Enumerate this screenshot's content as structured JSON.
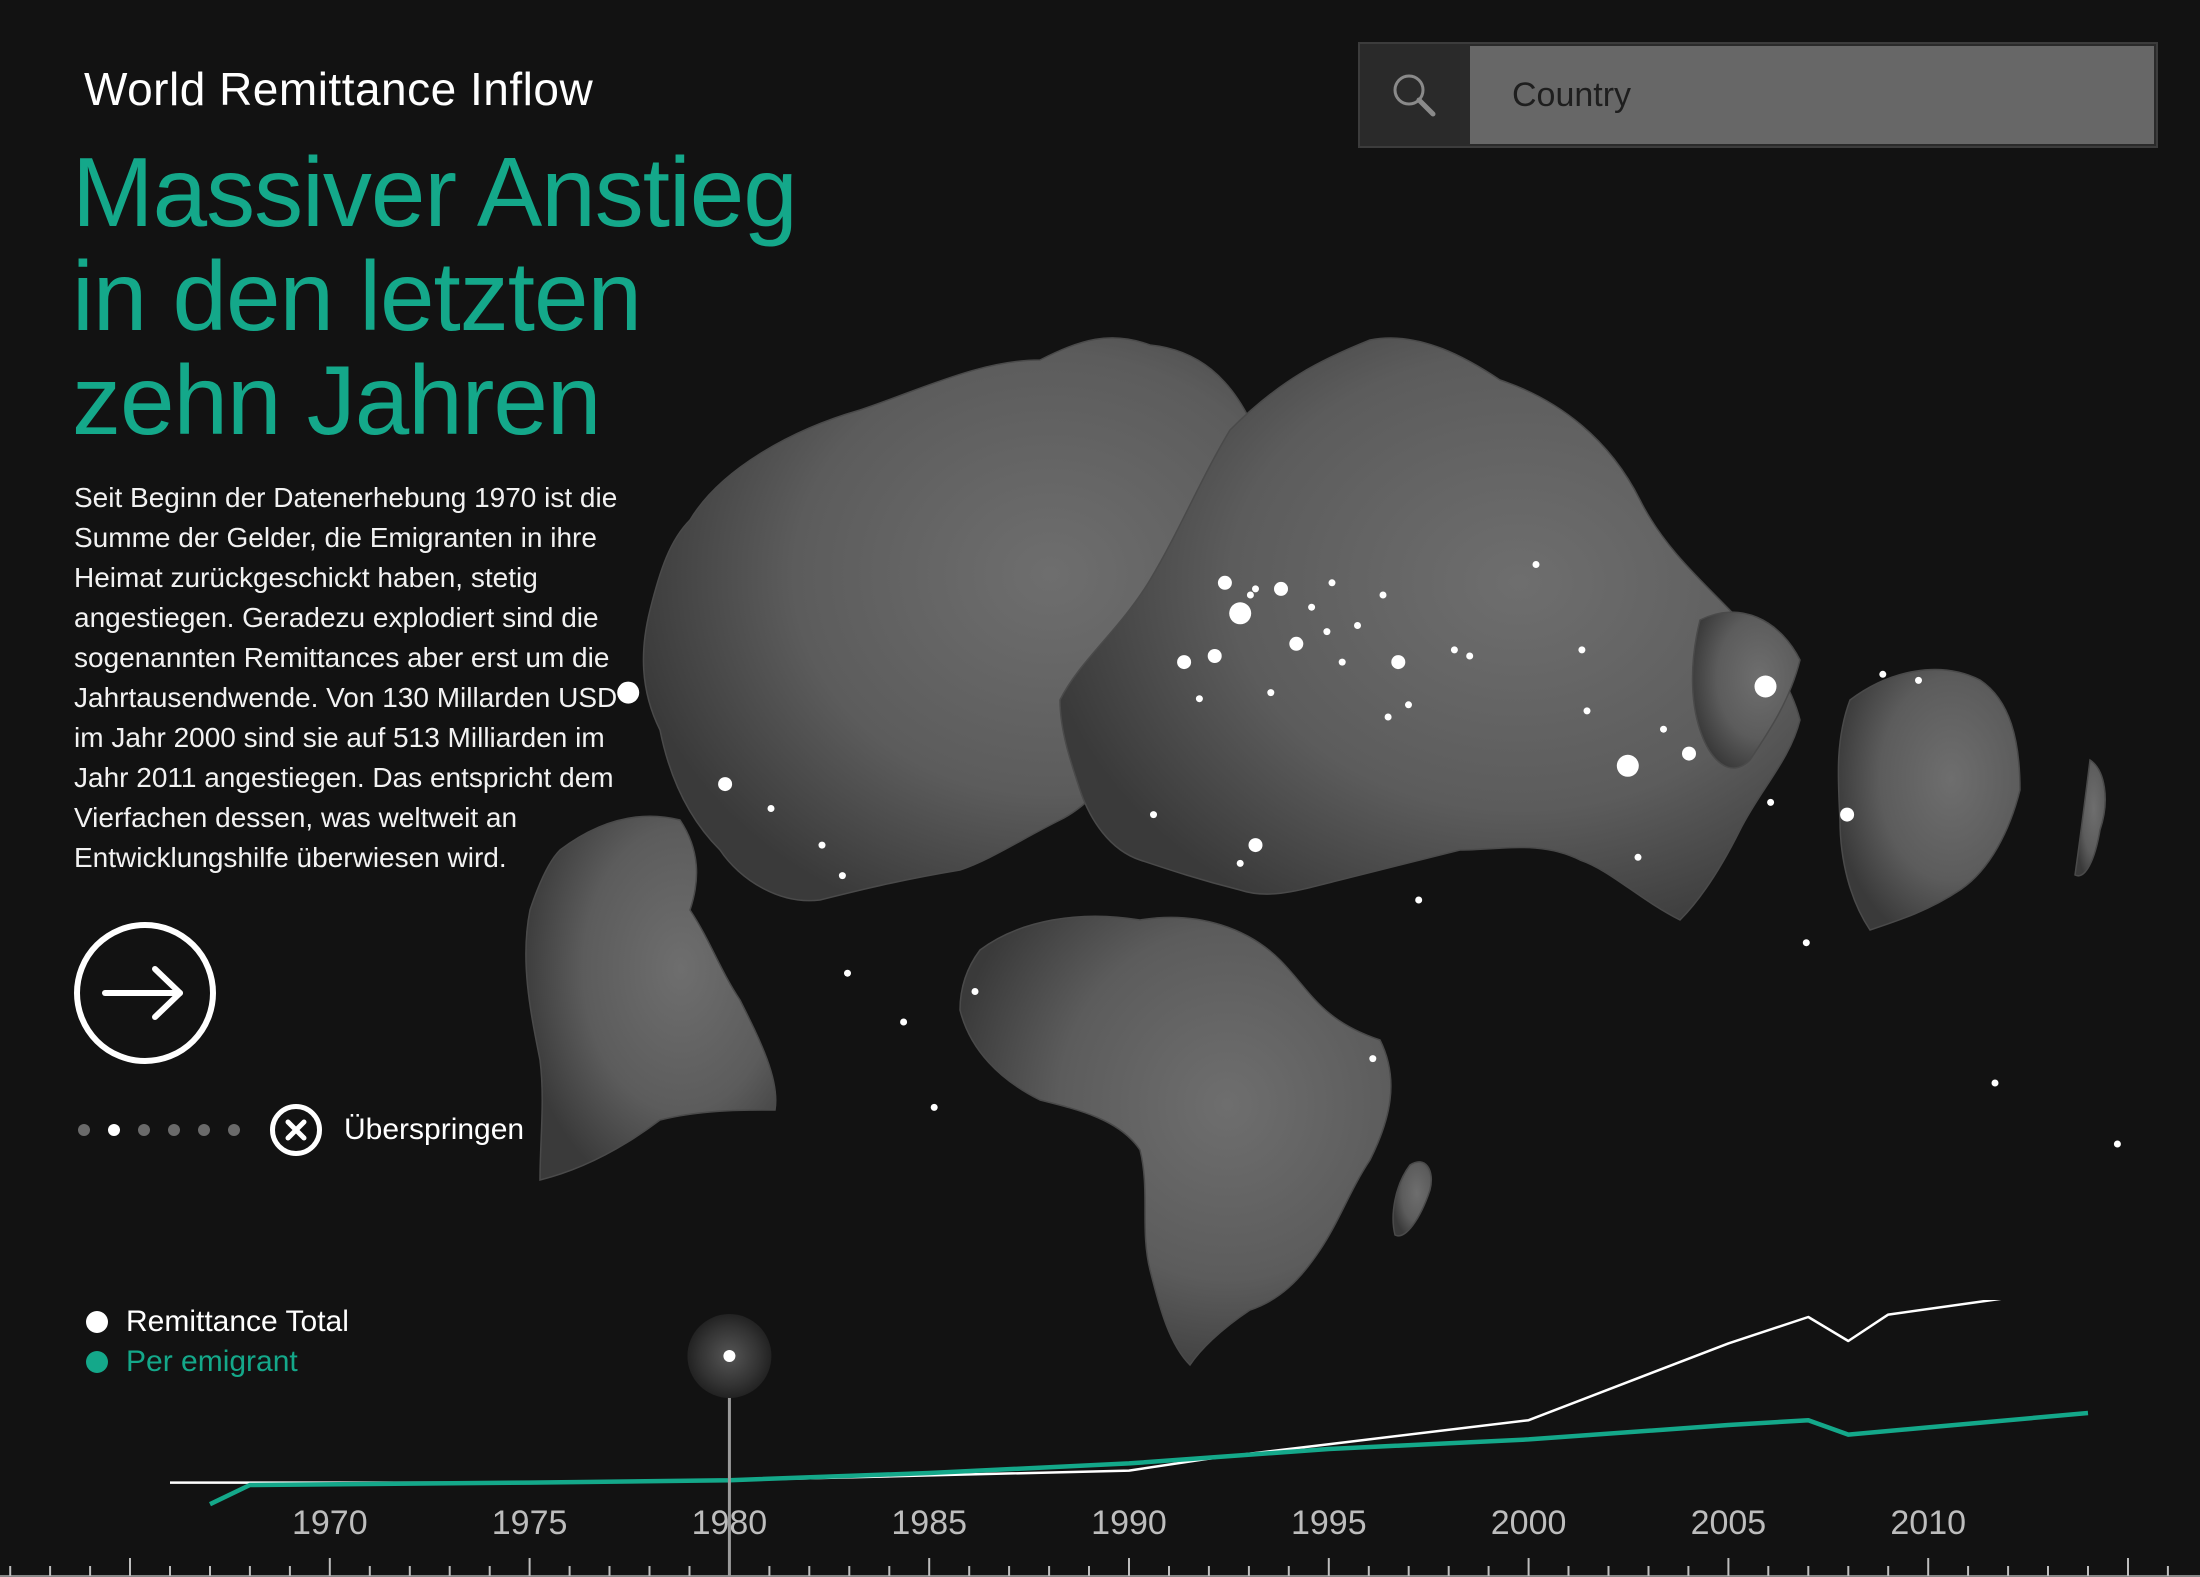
{
  "header": {
    "app_title": "World Remittance Inflow",
    "headline": [
      "Massiver Anstieg",
      "in den letzten",
      "zehn Jahren"
    ]
  },
  "intro": {
    "text": "Seit Beginn der Datenerhebung 1970 ist die Summe der Gelder, die Emigranten in ihre Heimat zurückgeschickt haben, stetig angestiegen. Geradezu explodiert sind die sogenannten Remittances aber erst um die Jahrtausendwende. Von 130 Millarden USD im Jahr 2000 sind sie auf 513 Milliarden im Jahr 2011 angestiegen. Das entspricht dem Vierfachen dessen, was weltweit an Entwicklungshilfe überwiesen wird."
  },
  "navigation": {
    "next_icon": "arrow-right-icon",
    "skip_icon": "close-circle-icon",
    "skip_label": "Überspringen",
    "pages_total": 6,
    "current_page": 2
  },
  "search": {
    "icon": "search-icon",
    "placeholder": "Country"
  },
  "legend": [
    {
      "label": "Remittance Total",
      "color": "#ffffff"
    },
    {
      "label": "Per emigrant",
      "color": "#14a88a"
    }
  ],
  "colors": {
    "background": "#121212",
    "land": "#5f5f5f",
    "accent": "#14a88a"
  },
  "chart_data": {
    "type": "line",
    "title": "",
    "xlabel": "",
    "ylabel": "",
    "x_ticks": [
      1970,
      1975,
      1980,
      1985,
      1990,
      1995,
      2000,
      2005,
      2010
    ],
    "xlim": [
      1966,
      2014
    ],
    "ylim": [
      0,
      1
    ],
    "selected_year": 1980,
    "series": [
      {
        "name": "Remittance Total",
        "color": "#ffffff",
        "x": [
          1966,
          1975,
          1980,
          1985,
          1990,
          1992,
          1995,
          2000,
          2005,
          2007,
          2008,
          2009,
          2012,
          2014
        ],
        "y": [
          0.01,
          0.01,
          0.02,
          0.04,
          0.06,
          0.11,
          0.17,
          0.27,
          0.59,
          0.7,
          0.6,
          0.71,
          0.78,
          0.83
        ]
      },
      {
        "name": "Per emigrant",
        "color": "#14a88a",
        "x": [
          1967,
          1968,
          1975,
          1980,
          1985,
          1990,
          1995,
          2000,
          2005,
          2007,
          2008,
          2010,
          2014
        ],
        "y": [
          -0.08,
          0.0,
          0.01,
          0.02,
          0.05,
          0.09,
          0.15,
          0.19,
          0.25,
          0.27,
          0.21,
          0.24,
          0.3
        ]
      }
    ]
  },
  "map_points": [
    {
      "lon": -118,
      "lat": 34,
      "v": 3
    },
    {
      "lon": -99,
      "lat": 19,
      "v": 2
    },
    {
      "lon": -90,
      "lat": 15,
      "v": 1
    },
    {
      "lon": -80,
      "lat": 9,
      "v": 1
    },
    {
      "lon": -76,
      "lat": 4,
      "v": 1
    },
    {
      "lon": -75,
      "lat": -12,
      "v": 1
    },
    {
      "lon": -58,
      "lat": -34,
      "v": 1
    },
    {
      "lon": -50,
      "lat": -15,
      "v": 1
    },
    {
      "lon": -64,
      "lat": -20,
      "v": 1
    },
    {
      "lon": -3,
      "lat": 40,
      "v": 2
    },
    {
      "lon": -9,
      "lat": 39,
      "v": 2
    },
    {
      "lon": 2,
      "lat": 47,
      "v": 3
    },
    {
      "lon": 10,
      "lat": 51,
      "v": 2
    },
    {
      "lon": 13,
      "lat": 42,
      "v": 2
    },
    {
      "lon": -1,
      "lat": 52,
      "v": 2
    },
    {
      "lon": 5,
      "lat": 51,
      "v": 1
    },
    {
      "lon": 4,
      "lat": 50,
      "v": 1
    },
    {
      "lon": 20,
      "lat": 52,
      "v": 1
    },
    {
      "lon": 16,
      "lat": 48,
      "v": 1
    },
    {
      "lon": 25,
      "lat": 45,
      "v": 1
    },
    {
      "lon": 19,
      "lat": 44,
      "v": 1
    },
    {
      "lon": 30,
      "lat": 50,
      "v": 1
    },
    {
      "lon": 22,
      "lat": 39,
      "v": 1
    },
    {
      "lon": 33,
      "lat": 39,
      "v": 2
    },
    {
      "lon": 35,
      "lat": 32,
      "v": 1
    },
    {
      "lon": 31,
      "lat": 30,
      "v": 1
    },
    {
      "lon": -6,
      "lat": 33,
      "v": 1
    },
    {
      "lon": 8,
      "lat": 34,
      "v": 1
    },
    {
      "lon": 5,
      "lat": 9,
      "v": 2
    },
    {
      "lon": 2,
      "lat": 6,
      "v": 1
    },
    {
      "lon": 37,
      "lat": 0,
      "v": 1
    },
    {
      "lon": -15,
      "lat": 14,
      "v": 1
    },
    {
      "lon": 28,
      "lat": -26,
      "v": 1
    },
    {
      "lon": 70,
      "lat": 31,
      "v": 1
    },
    {
      "lon": 78,
      "lat": 22,
      "v": 3
    },
    {
      "lon": 90,
      "lat": 24,
      "v": 2
    },
    {
      "lon": 105,
      "lat": 35,
      "v": 3
    },
    {
      "lon": 121,
      "lat": 14,
      "v": 2
    },
    {
      "lon": 106,
      "lat": 16,
      "v": 1
    },
    {
      "lon": 113,
      "lat": -7,
      "v": 1
    },
    {
      "lon": 128,
      "lat": 37,
      "v": 1
    },
    {
      "lon": 135,
      "lat": 36,
      "v": 1
    },
    {
      "lon": 60,
      "lat": 55,
      "v": 1
    },
    {
      "lon": 80,
      "lat": 7,
      "v": 1
    },
    {
      "lon": 150,
      "lat": -30,
      "v": 1
    },
    {
      "lon": 174,
      "lat": -40,
      "v": 1
    },
    {
      "lon": 47,
      "lat": 40,
      "v": 1
    },
    {
      "lon": 44,
      "lat": 41,
      "v": 1
    },
    {
      "lon": 69,
      "lat": 41,
      "v": 1
    },
    {
      "lon": 85,
      "lat": 28,
      "v": 1
    }
  ]
}
